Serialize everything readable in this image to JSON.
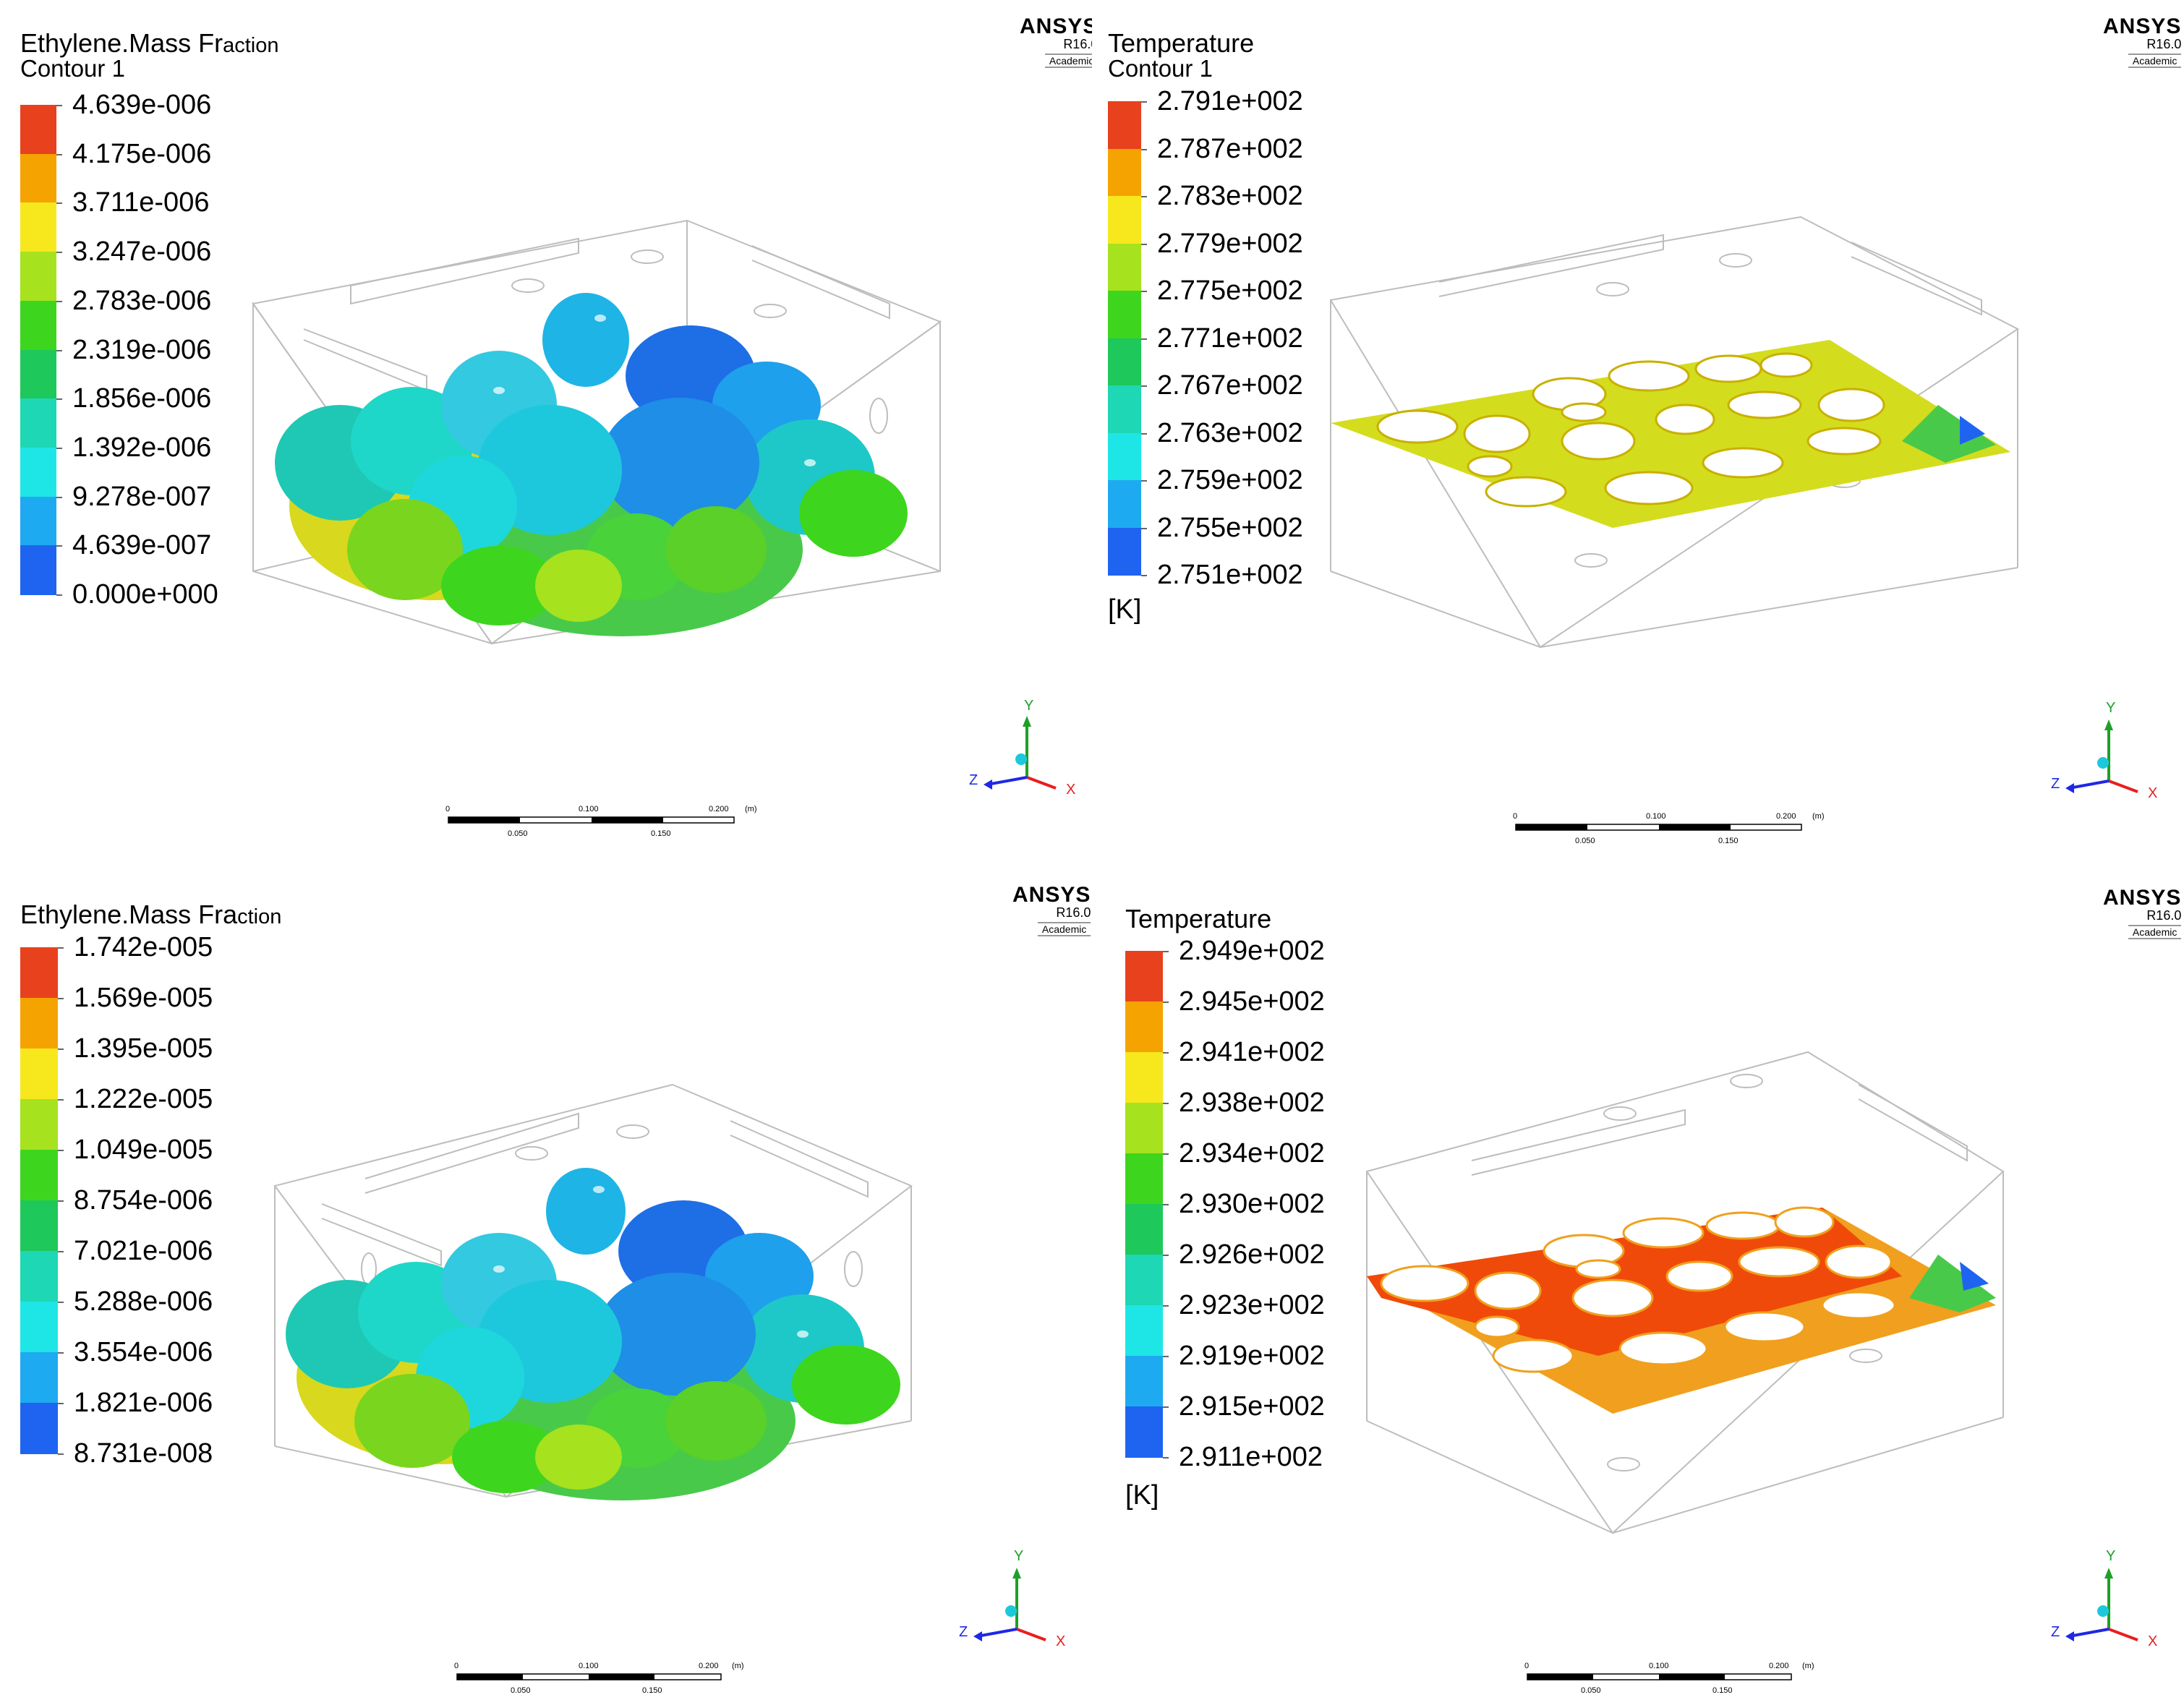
{
  "brand": {
    "name": "ANSYS",
    "version": "R16.0",
    "edition": "Academic"
  },
  "panels": [
    {
      "id": "tl",
      "title": "Ethylene.Mass Fr",
      "title_small": "action",
      "subtitle": "Contour 1",
      "unit": "",
      "levels": [
        "4.639e-006",
        "4.175e-006",
        "3.711e-006",
        "3.247e-006",
        "2.783e-006",
        "2.319e-006",
        "1.856e-006",
        "1.392e-006",
        "9.278e-007",
        "4.639e-007",
        "0.000e+000"
      ]
    },
    {
      "id": "tr",
      "title": "Temperature",
      "title_small": "",
      "subtitle": "Contour 1",
      "unit": "[K]",
      "levels": [
        "2.791e+002",
        "2.787e+002",
        "2.783e+002",
        "2.779e+002",
        "2.775e+002",
        "2.771e+002",
        "2.767e+002",
        "2.763e+002",
        "2.759e+002",
        "2.755e+002",
        "2.751e+002"
      ]
    },
    {
      "id": "bl",
      "title": "Ethylene.Mass Fra",
      "title_small": "ction",
      "subtitle": "",
      "unit": "",
      "levels": [
        "1.742e-005",
        "1.569e-005",
        "1.395e-005",
        "1.222e-005",
        "1.049e-005",
        "8.754e-006",
        "7.021e-006",
        "5.288e-006",
        "3.554e-006",
        "1.821e-006",
        "8.731e-008"
      ]
    },
    {
      "id": "br",
      "title": "Temperature",
      "title_small": "",
      "subtitle": "",
      "unit": "[K]",
      "levels": [
        "2.949e+002",
        "2.945e+002",
        "2.941e+002",
        "2.938e+002",
        "2.934e+002",
        "2.930e+002",
        "2.926e+002",
        "2.923e+002",
        "2.919e+002",
        "2.915e+002",
        "2.911e+002"
      ]
    }
  ],
  "scale_bar": {
    "labels_top": [
      "0",
      "0.100",
      "0.200"
    ],
    "unit": "(m)",
    "labels_bottom": [
      "0.050",
      "0.150"
    ]
  },
  "axes": {
    "y": "Y",
    "x": "X",
    "z": "Z"
  },
  "colormap": [
    "#e8411e",
    "#f5a300",
    "#f7e81e",
    "#a6e21e",
    "#3ed51e",
    "#1ec85a",
    "#1ed7b4",
    "#1ee6e6",
    "#1eaaf0",
    "#1e64f0",
    "#1e28e6"
  ]
}
